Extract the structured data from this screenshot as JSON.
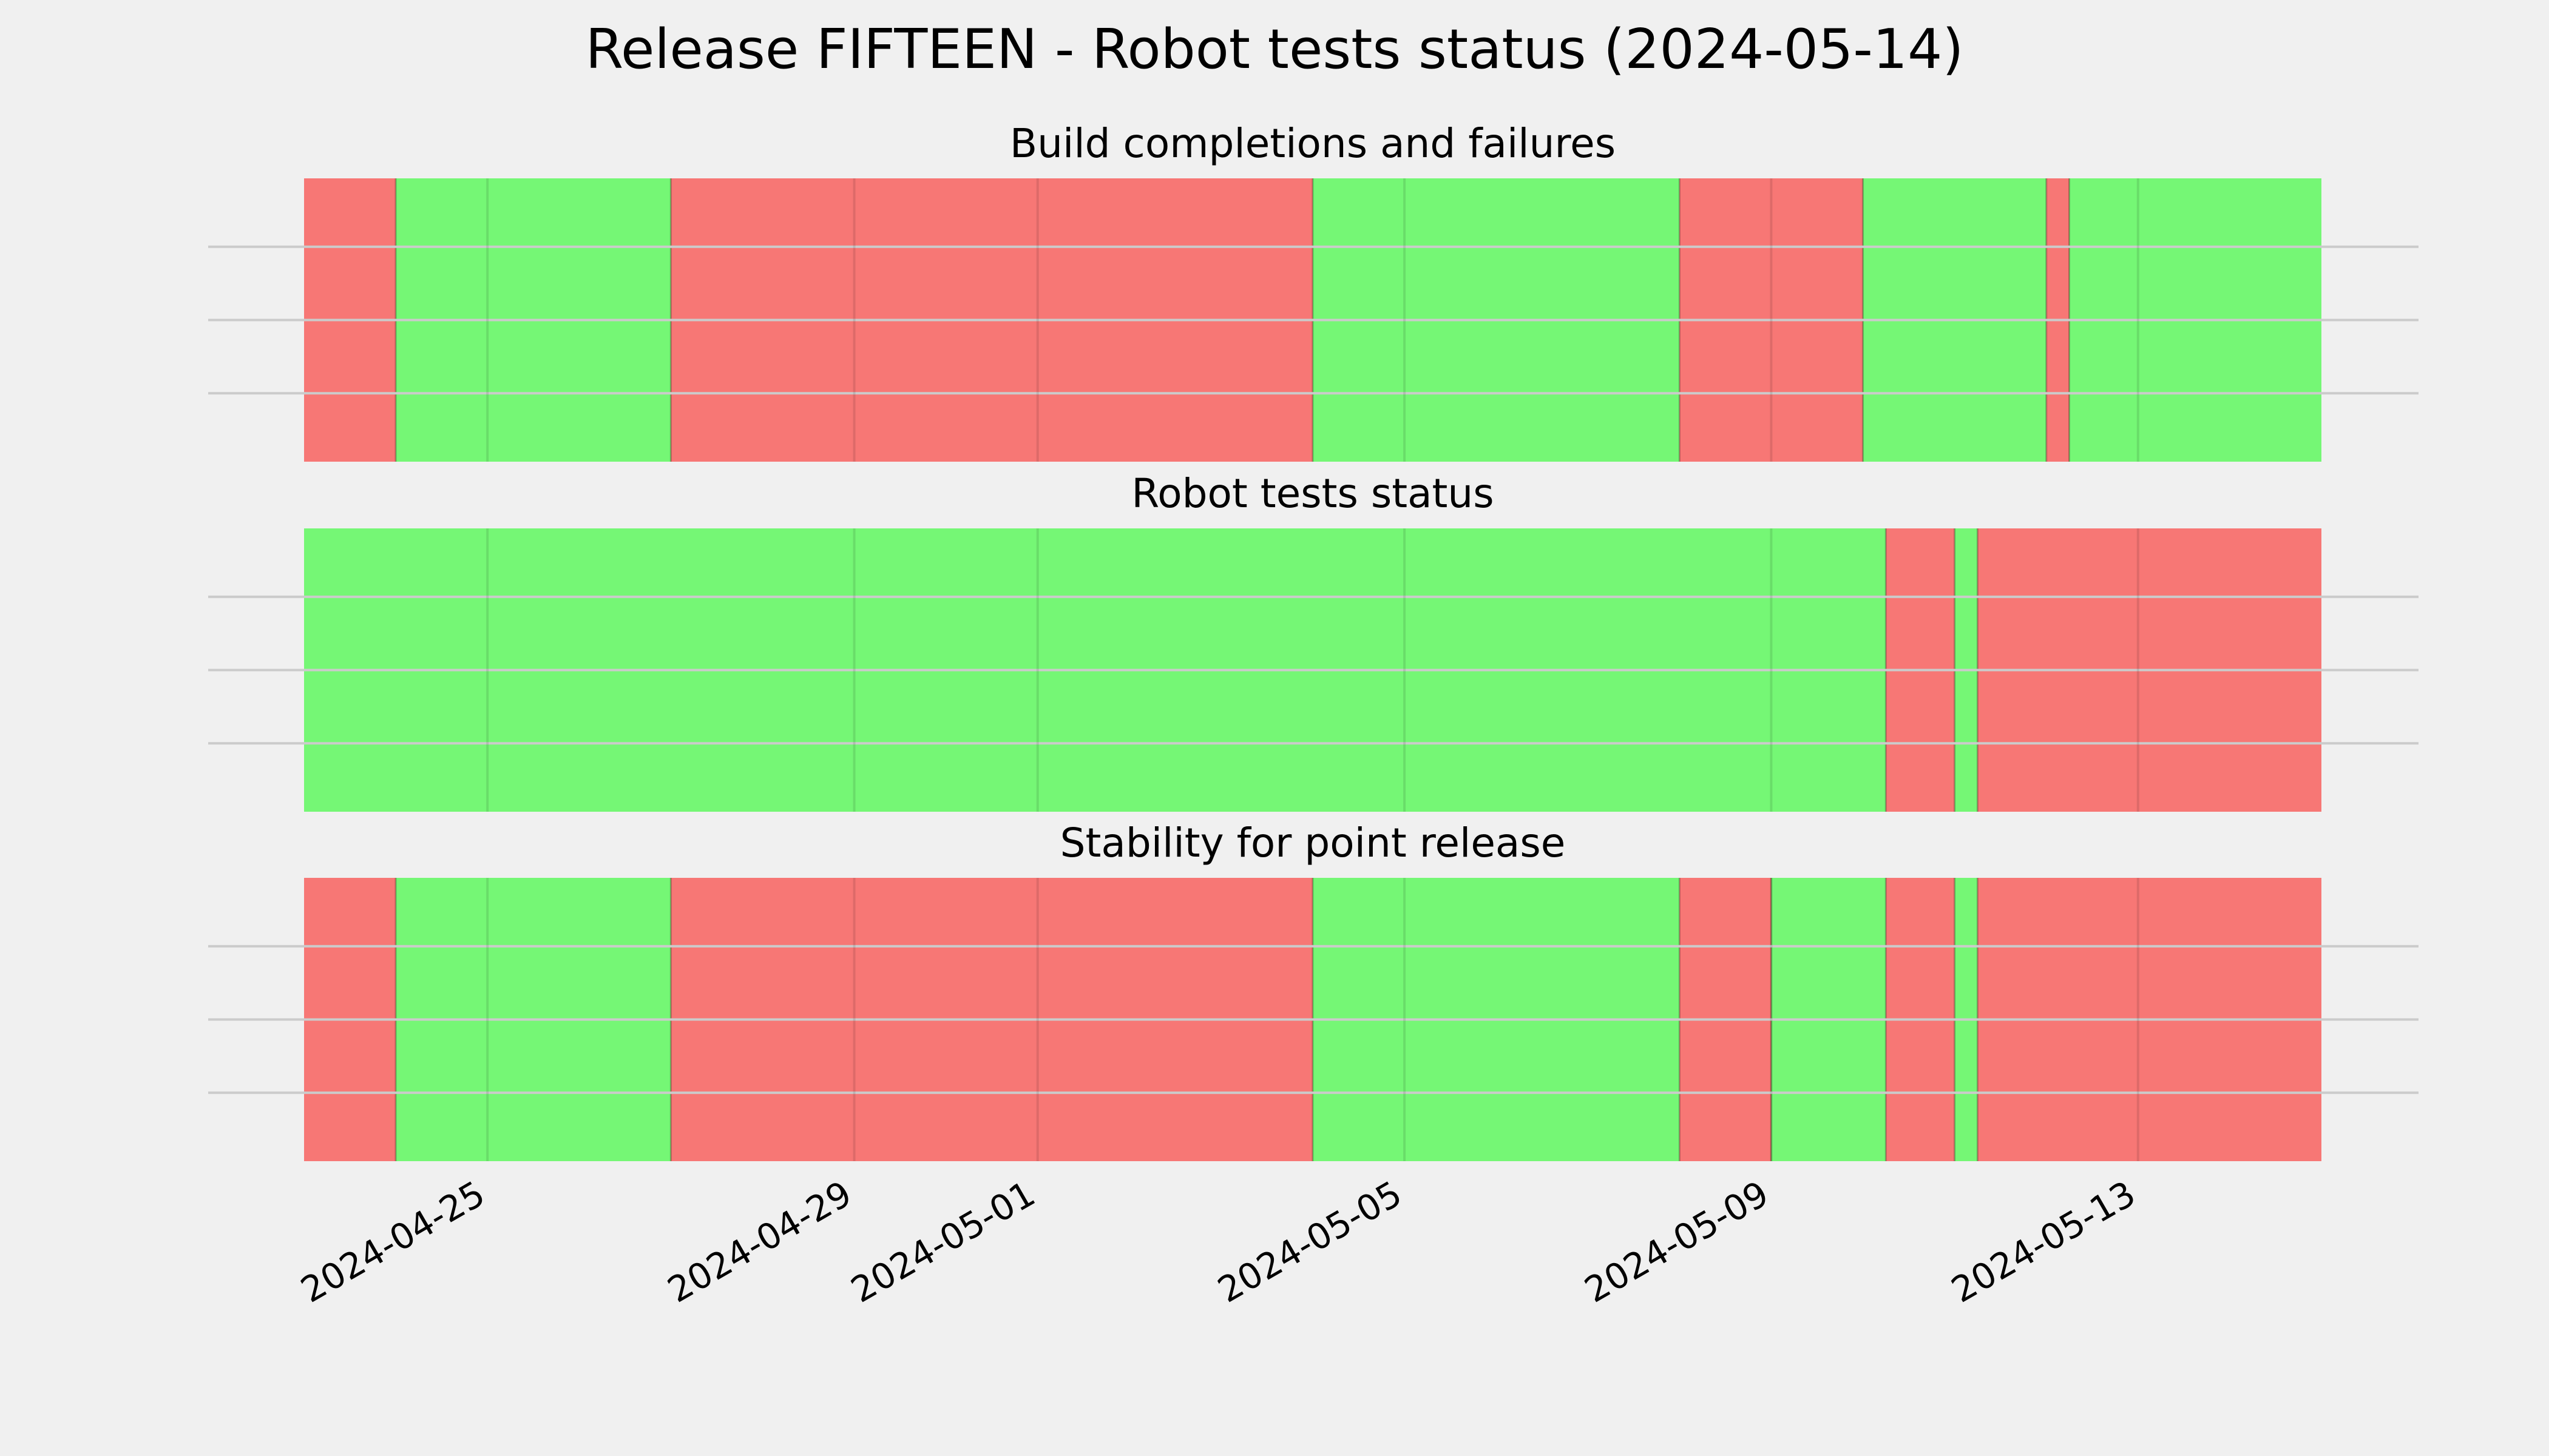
{
  "chart_data": {
    "type": "timeline",
    "title": "Release FIFTEEN - Robot tests status (2024-05-14)",
    "colors": {
      "background": "#f0f0f0",
      "pass": "#75f775",
      "fail": "#f77775",
      "grid": "#cbcbcb"
    },
    "x_axis": {
      "type": "date",
      "range": [
        "2024-04-23",
        "2024-05-15"
      ],
      "ticks": [
        "2024-04-25",
        "2024-04-29",
        "2024-05-01",
        "2024-05-05",
        "2024-05-09",
        "2024-05-13"
      ]
    },
    "panels": [
      {
        "title": "Build completions and failures",
        "segments": [
          {
            "start": "2024-04-23",
            "end": "2024-04-24",
            "status": "fail"
          },
          {
            "start": "2024-04-24",
            "end": "2024-04-27",
            "status": "pass"
          },
          {
            "start": "2024-04-27",
            "end": "2024-05-04",
            "status": "fail"
          },
          {
            "start": "2024-05-04",
            "end": "2024-05-08",
            "status": "pass"
          },
          {
            "start": "2024-05-08",
            "end": "2024-05-10",
            "status": "fail"
          },
          {
            "start": "2024-05-10",
            "end": "2024-05-12",
            "status": "pass"
          },
          {
            "start": "2024-05-12",
            "end": "2024-05-12 06:00",
            "status": "fail"
          },
          {
            "start": "2024-05-12 06:00",
            "end": "2024-05-15",
            "status": "pass"
          }
        ]
      },
      {
        "title": "Robot tests status",
        "segments": [
          {
            "start": "2024-04-23",
            "end": "2024-05-10 06:00",
            "status": "pass"
          },
          {
            "start": "2024-05-10 06:00",
            "end": "2024-05-11",
            "status": "fail"
          },
          {
            "start": "2024-05-11",
            "end": "2024-05-11 06:00",
            "status": "pass"
          },
          {
            "start": "2024-05-11 06:00",
            "end": "2024-05-15",
            "status": "fail"
          }
        ]
      },
      {
        "title": "Stability for point release",
        "segments": [
          {
            "start": "2024-04-23",
            "end": "2024-04-24",
            "status": "fail"
          },
          {
            "start": "2024-04-24",
            "end": "2024-04-27",
            "status": "pass"
          },
          {
            "start": "2024-04-27",
            "end": "2024-05-04",
            "status": "fail"
          },
          {
            "start": "2024-05-04",
            "end": "2024-05-08",
            "status": "pass"
          },
          {
            "start": "2024-05-08",
            "end": "2024-05-09",
            "status": "fail"
          },
          {
            "start": "2024-05-09",
            "end": "2024-05-10 06:00",
            "status": "pass"
          },
          {
            "start": "2024-05-10 06:00",
            "end": "2024-05-11",
            "status": "fail"
          },
          {
            "start": "2024-05-11",
            "end": "2024-05-11 06:00",
            "status": "pass"
          },
          {
            "start": "2024-05-11 06:00",
            "end": "2024-05-15",
            "status": "fail"
          }
        ]
      }
    ]
  }
}
